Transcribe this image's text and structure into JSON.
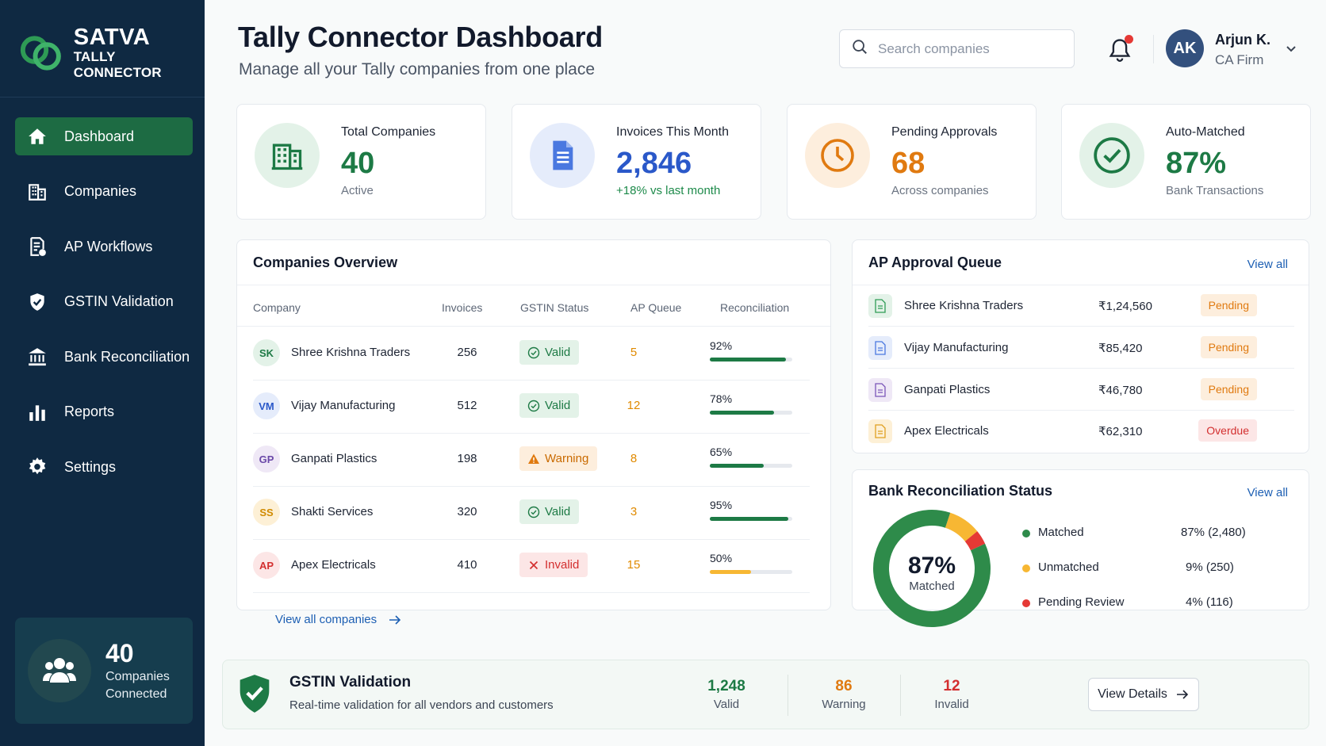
{
  "brand": {
    "name": "SATVA",
    "subtitle": "TALLY CONNECTOR"
  },
  "sidebar": {
    "items": [
      {
        "label": "Dashboard",
        "icon": "home-icon",
        "active": true
      },
      {
        "label": "Companies",
        "icon": "building-icon"
      },
      {
        "label": "AP Workflows",
        "icon": "document-workflow-icon"
      },
      {
        "label": "GSTIN Validation",
        "icon": "shield-check-icon"
      },
      {
        "label": "Bank Reconciliation",
        "icon": "bank-icon"
      },
      {
        "label": "Reports",
        "icon": "bar-chart-icon"
      },
      {
        "label": "Settings",
        "icon": "gear-icon"
      }
    ],
    "card": {
      "count": "40",
      "label_line1": "Companies",
      "label_line2": "Connected"
    }
  },
  "header": {
    "title": "Tally Connector Dashboard",
    "subtitle": "Manage all your Tally companies from one place",
    "search_placeholder": "Search companies",
    "user": {
      "initials": "AK",
      "name": "Arjun K.",
      "role": "CA Firm"
    }
  },
  "stats": [
    {
      "label": "Total Companies",
      "value": "40",
      "sub": "Active",
      "icon": "building-icon",
      "color": "#1d7a45"
    },
    {
      "label": "Invoices This Month",
      "value": "2,846",
      "sub": "+18% vs last month",
      "icon": "invoice-icon",
      "color": "#2a58c9"
    },
    {
      "label": "Pending Approvals",
      "value": "68",
      "sub": "Across companies",
      "icon": "clock-icon",
      "color": "#e07a10"
    },
    {
      "label": "Auto-Matched",
      "value": "87%",
      "sub": "Bank Transactions",
      "icon": "check-circle-icon",
      "color": "#1d7a45"
    }
  ],
  "companies_overview": {
    "title": "Companies Overview",
    "columns": [
      "Company",
      "Invoices",
      "GSTIN Status",
      "AP Queue",
      "Reconciliation"
    ],
    "rows": [
      {
        "initials": "SK",
        "name": "Shree Krishna Traders",
        "invoices": "256",
        "gstin": "Valid",
        "ap_queue": "5",
        "recon_label": "92%",
        "recon": 0.92
      },
      {
        "initials": "VM",
        "name": "Vijay Manufacturing",
        "invoices": "512",
        "gstin": "Valid",
        "ap_queue": "12",
        "recon_label": "78%",
        "recon": 0.78
      },
      {
        "initials": "GP",
        "name": "Ganpati Plastics",
        "invoices": "198",
        "gstin": "Warning",
        "ap_queue": "8",
        "recon_label": "65%",
        "recon": 0.65
      },
      {
        "initials": "SS",
        "name": "Shakti Services",
        "invoices": "320",
        "gstin": "Valid",
        "ap_queue": "3",
        "recon_label": "95%",
        "recon": 0.95
      },
      {
        "initials": "AP",
        "name": "Apex Electricals",
        "invoices": "410",
        "gstin": "Invalid",
        "ap_queue": "15",
        "recon_label": "50%",
        "recon": 0.5
      }
    ],
    "view_all": "View all companies"
  },
  "ap_queue": {
    "title": "AP Approval Queue",
    "view_all": "View all",
    "rows": [
      {
        "name": "Shree Krishna Traders",
        "amount": "₹1,24,560",
        "status": "Pending"
      },
      {
        "name": "Vijay Manufacturing",
        "amount": "₹85,420",
        "status": "Pending"
      },
      {
        "name": "Ganpati Plastics",
        "amount": "₹46,780",
        "status": "Pending"
      },
      {
        "name": "Apex Electricals",
        "amount": "₹62,310",
        "status": "Overdue"
      }
    ]
  },
  "bank_recon": {
    "title": "Bank Reconciliation Status",
    "view_all": "View all",
    "center_value": "87%",
    "center_label": "Matched",
    "legend": [
      {
        "name": "Matched",
        "value": "87%  (2,480)",
        "pct": 87,
        "color": "#2e8b4a"
      },
      {
        "name": "Unmatched",
        "value": "9%  (250)",
        "pct": 9,
        "color": "#f7b733"
      },
      {
        "name": "Pending Review",
        "value": "4%  (116)",
        "pct": 4,
        "color": "#e53935"
      }
    ]
  },
  "gstin_banner": {
    "title": "GSTIN Validation",
    "subtitle": "Real-time validation for all vendors and customers",
    "stats": [
      {
        "value": "1,248",
        "label": "Valid",
        "color": "#1d7a45"
      },
      {
        "value": "86",
        "label": "Warning",
        "color": "#e07a10"
      },
      {
        "value": "12",
        "label": "Invalid",
        "color": "#d32f2f"
      }
    ],
    "button": "View Details"
  }
}
